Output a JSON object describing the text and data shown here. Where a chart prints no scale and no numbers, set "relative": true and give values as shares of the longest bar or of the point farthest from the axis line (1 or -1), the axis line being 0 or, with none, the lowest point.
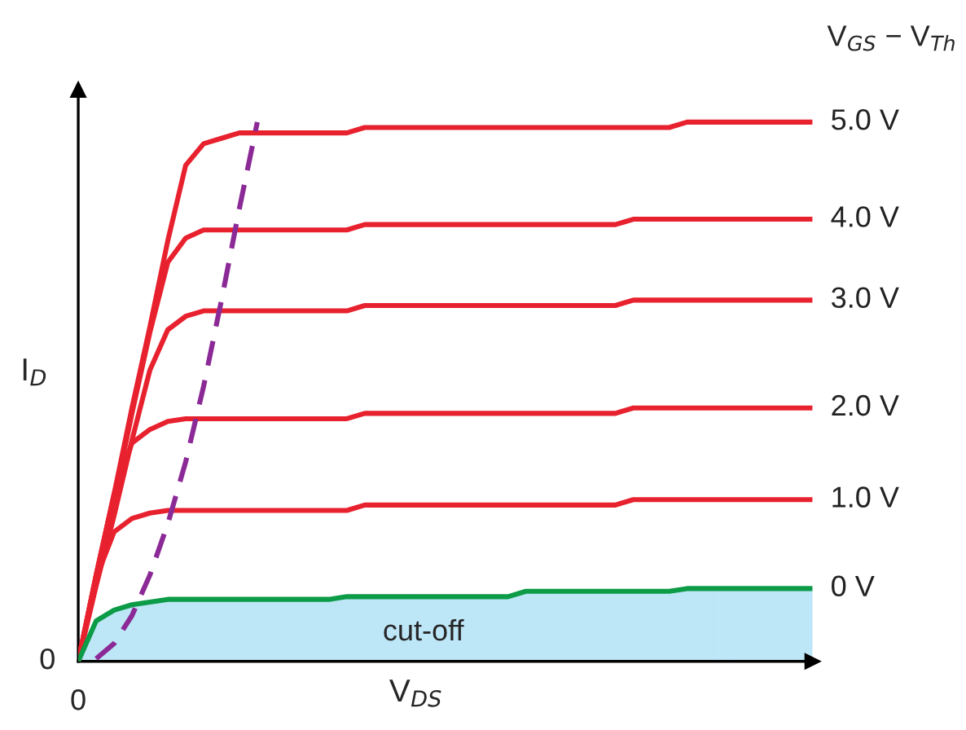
{
  "chart_data": {
    "type": "line",
    "relative": true,
    "xlabel": "V$_{DS}$",
    "ylabel": "I$_{D}$",
    "legend_title": "V$_{GS}$ − V$_{Th}$",
    "legend": false,
    "marker": "none",
    "annotations": [
      "0",
      "0",
      "cut-off"
    ],
    "categories": [
      null,
      null,
      null,
      null,
      null,
      null,
      null,
      null,
      null,
      null,
      null,
      null,
      null,
      null,
      null,
      null,
      null,
      null,
      null,
      null,
      null,
      null,
      null,
      null,
      null,
      null,
      null,
      null,
      null,
      null,
      null,
      null,
      null,
      null,
      null,
      null,
      null,
      null,
      null,
      null,
      null,
      null
    ],
    "series": [
      {
        "name": "5.0 V",
        "color": "#e8212e",
        "values": [
          0,
          0.16,
          0.31,
          0.47,
          0.62,
          0.78,
          0.92,
          0.96,
          0.97,
          0.98,
          0.98,
          0.98,
          0.98,
          0.98,
          0.98,
          0.98,
          0.99,
          0.99,
          0.99,
          0.99,
          0.99,
          0.99,
          0.99,
          0.99,
          0.99,
          0.99,
          0.99,
          0.99,
          0.99,
          0.99,
          0.99,
          0.99,
          0.99,
          0.99,
          1.0,
          1.0,
          1.0,
          1.0,
          1.0,
          1.0,
          1.0,
          1.0
        ]
      },
      {
        "name": "4.0 V",
        "color": "#e8212e",
        "values": [
          0,
          0.15,
          0.3,
          0.46,
          0.61,
          0.74,
          0.785,
          0.8,
          0.8,
          0.8,
          0.8,
          0.8,
          0.8,
          0.8,
          0.8,
          0.8,
          0.81,
          0.81,
          0.81,
          0.81,
          0.81,
          0.81,
          0.81,
          0.81,
          0.81,
          0.81,
          0.81,
          0.81,
          0.81,
          0.81,
          0.81,
          0.82,
          0.82,
          0.82,
          0.82,
          0.82,
          0.82,
          0.82,
          0.82,
          0.82,
          0.82,
          0.82
        ]
      },
      {
        "name": "3.0 V",
        "color": "#e8212e",
        "values": [
          0,
          0.14,
          0.27,
          0.41,
          0.54,
          0.615,
          0.64,
          0.65,
          0.65,
          0.65,
          0.65,
          0.65,
          0.65,
          0.65,
          0.65,
          0.65,
          0.66,
          0.66,
          0.66,
          0.66,
          0.66,
          0.66,
          0.66,
          0.66,
          0.66,
          0.66,
          0.66,
          0.66,
          0.66,
          0.66,
          0.66,
          0.67,
          0.67,
          0.67,
          0.67,
          0.67,
          0.67,
          0.67,
          0.67,
          0.67,
          0.67,
          0.67
        ]
      },
      {
        "name": "2.0 V",
        "color": "#e8212e",
        "values": [
          0,
          0.16,
          0.31,
          0.405,
          0.43,
          0.445,
          0.45,
          0.45,
          0.45,
          0.45,
          0.45,
          0.45,
          0.45,
          0.45,
          0.45,
          0.45,
          0.46,
          0.46,
          0.46,
          0.46,
          0.46,
          0.46,
          0.46,
          0.46,
          0.46,
          0.46,
          0.46,
          0.46,
          0.46,
          0.46,
          0.46,
          0.47,
          0.47,
          0.47,
          0.47,
          0.47,
          0.47,
          0.47,
          0.47,
          0.47,
          0.47,
          0.47
        ]
      },
      {
        "name": "1.0 V",
        "color": "#e8212e",
        "values": [
          0,
          0.155,
          0.24,
          0.265,
          0.275,
          0.28,
          0.28,
          0.28,
          0.28,
          0.28,
          0.28,
          0.28,
          0.28,
          0.28,
          0.28,
          0.28,
          0.29,
          0.29,
          0.29,
          0.29,
          0.29,
          0.29,
          0.29,
          0.29,
          0.29,
          0.29,
          0.29,
          0.29,
          0.29,
          0.29,
          0.29,
          0.3,
          0.3,
          0.3,
          0.3,
          0.3,
          0.3,
          0.3,
          0.3,
          0.3,
          0.3,
          0.3
        ]
      },
      {
        "name": "0 V",
        "type": "area",
        "color": "#0c9b46",
        "colors": [
          "#bde6f7",
          "#bde6f7",
          "#bde6f7",
          "#bde6f7",
          "#bde6f7",
          "#bde6f7",
          "#bde6f7",
          "#bde6f7",
          "#bde6f7",
          "#bde6f7",
          "#bde6f7",
          "#bde6f7",
          "#bde6f7",
          "#bde6f7",
          "#bde6f7",
          "#bde6f7",
          "#bde6f7",
          "#bde6f7",
          "#bde6f7",
          "#bde6f7",
          "#bde6f7",
          "#bde6f7",
          "#bde6f7",
          "#bde6f7",
          "#bde6f7",
          "#bde6f7",
          "#bde6f7",
          "#bde6f7",
          "#bde6f7",
          "#bde6f7",
          "#bde6f7",
          "#bde6f7",
          "#bde6f7",
          "#bde6f7",
          "#bde6f7",
          "#bde6f7",
          "#bde6f7",
          "#bde6f7",
          "#bde6f7",
          "#bde6f7",
          "#bde6f7",
          "#bde6f7"
        ],
        "values": [
          0,
          0.075,
          0.095,
          0.105,
          0.11,
          0.115,
          0.115,
          0.115,
          0.115,
          0.115,
          0.115,
          0.115,
          0.115,
          0.115,
          0.115,
          0.12,
          0.12,
          0.12,
          0.12,
          0.12,
          0.12,
          0.12,
          0.12,
          0.12,
          0.12,
          0.13,
          0.13,
          0.13,
          0.13,
          0.13,
          0.13,
          0.13,
          0.13,
          0.13,
          0.135,
          0.135,
          0.135,
          0.135,
          0.135,
          0.135,
          0.135,
          0.135
        ]
      },
      {
        "color": "#8b2a96",
        "line_style": "dashed",
        "values": [
          null,
          0.005,
          0.033,
          0.085,
          0.16,
          0.255,
          0.37,
          0.51,
          0.67,
          0.84,
          1.0,
          null,
          null,
          null,
          null,
          null,
          null,
          null,
          null,
          null,
          null,
          null,
          null,
          null,
          null,
          null,
          null,
          null,
          null,
          null,
          null,
          null,
          null,
          null,
          null,
          null,
          null,
          null,
          null,
          null,
          null,
          null
        ]
      }
    ]
  }
}
